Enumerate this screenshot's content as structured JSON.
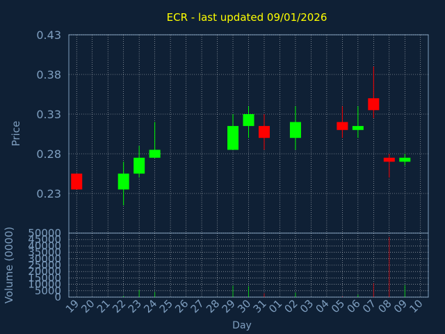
{
  "chart_data": {
    "type": "candlestick",
    "title": "ECR - last updated 09/01/2026",
    "xlabel": "Day",
    "price_panel": {
      "ylabel": "Price",
      "ylim": [
        0.18,
        0.43
      ],
      "yticks": [
        "0.43",
        "0.38",
        "0.33",
        "0.28",
        "0.23"
      ],
      "grid": true
    },
    "volume_panel": {
      "ylabel": "Volume (0000)",
      "ylim": [
        0,
        50000
      ],
      "yticks": [
        "50000",
        "45000",
        "40000",
        "35000",
        "30000",
        "25000",
        "20000",
        "15000",
        "10000",
        "5000",
        "0"
      ],
      "grid": true
    },
    "categories": [
      "19",
      "20",
      "21",
      "22",
      "23",
      "24",
      "25",
      "26",
      "27",
      "28",
      "29",
      "30",
      "31",
      "01",
      "02",
      "03",
      "04",
      "05",
      "06",
      "07",
      "08",
      "09",
      "10"
    ],
    "candles": [
      {
        "day": "19",
        "open": 0.255,
        "high": 0.255,
        "low": 0.235,
        "close": 0.235,
        "volume": 0
      },
      {
        "day": "22",
        "open": 0.235,
        "high": 0.27,
        "low": 0.215,
        "close": 0.255,
        "volume": 1000
      },
      {
        "day": "23",
        "open": 0.255,
        "high": 0.29,
        "low": 0.25,
        "close": 0.275,
        "volume": 5500
      },
      {
        "day": "24",
        "open": 0.275,
        "high": 0.32,
        "low": 0.275,
        "close": 0.285,
        "volume": 4000
      },
      {
        "day": "29",
        "open": 0.285,
        "high": 0.33,
        "low": 0.285,
        "close": 0.315,
        "volume": 9000
      },
      {
        "day": "30",
        "open": 0.315,
        "high": 0.34,
        "low": 0.3,
        "close": 0.33,
        "volume": 8500
      },
      {
        "day": "31",
        "open": 0.315,
        "high": 0.33,
        "low": 0.285,
        "close": 0.3,
        "volume": 3000
      },
      {
        "day": "02",
        "open": 0.3,
        "high": 0.34,
        "low": 0.285,
        "close": 0.32,
        "volume": 3500
      },
      {
        "day": "05",
        "open": 0.32,
        "high": 0.34,
        "low": 0.3,
        "close": 0.31,
        "volume": 500
      },
      {
        "day": "06",
        "open": 0.31,
        "high": 0.34,
        "low": 0.3,
        "close": 0.315,
        "volume": 2000
      },
      {
        "day": "07",
        "open": 0.35,
        "high": 0.39,
        "low": 0.325,
        "close": 0.335,
        "volume": 11000
      },
      {
        "day": "08",
        "open": 0.275,
        "high": 0.28,
        "low": 0.25,
        "close": 0.27,
        "volume": 47000
      },
      {
        "day": "09",
        "open": 0.27,
        "high": 0.28,
        "low": 0.265,
        "close": 0.275,
        "volume": 9500
      }
    ],
    "colors": {
      "up": "#00ff00",
      "down": "#ff0000",
      "background": "#0f2035",
      "grid": "#ffffff",
      "tick_text": "#7f9fc0",
      "title": "#ffff00"
    }
  }
}
